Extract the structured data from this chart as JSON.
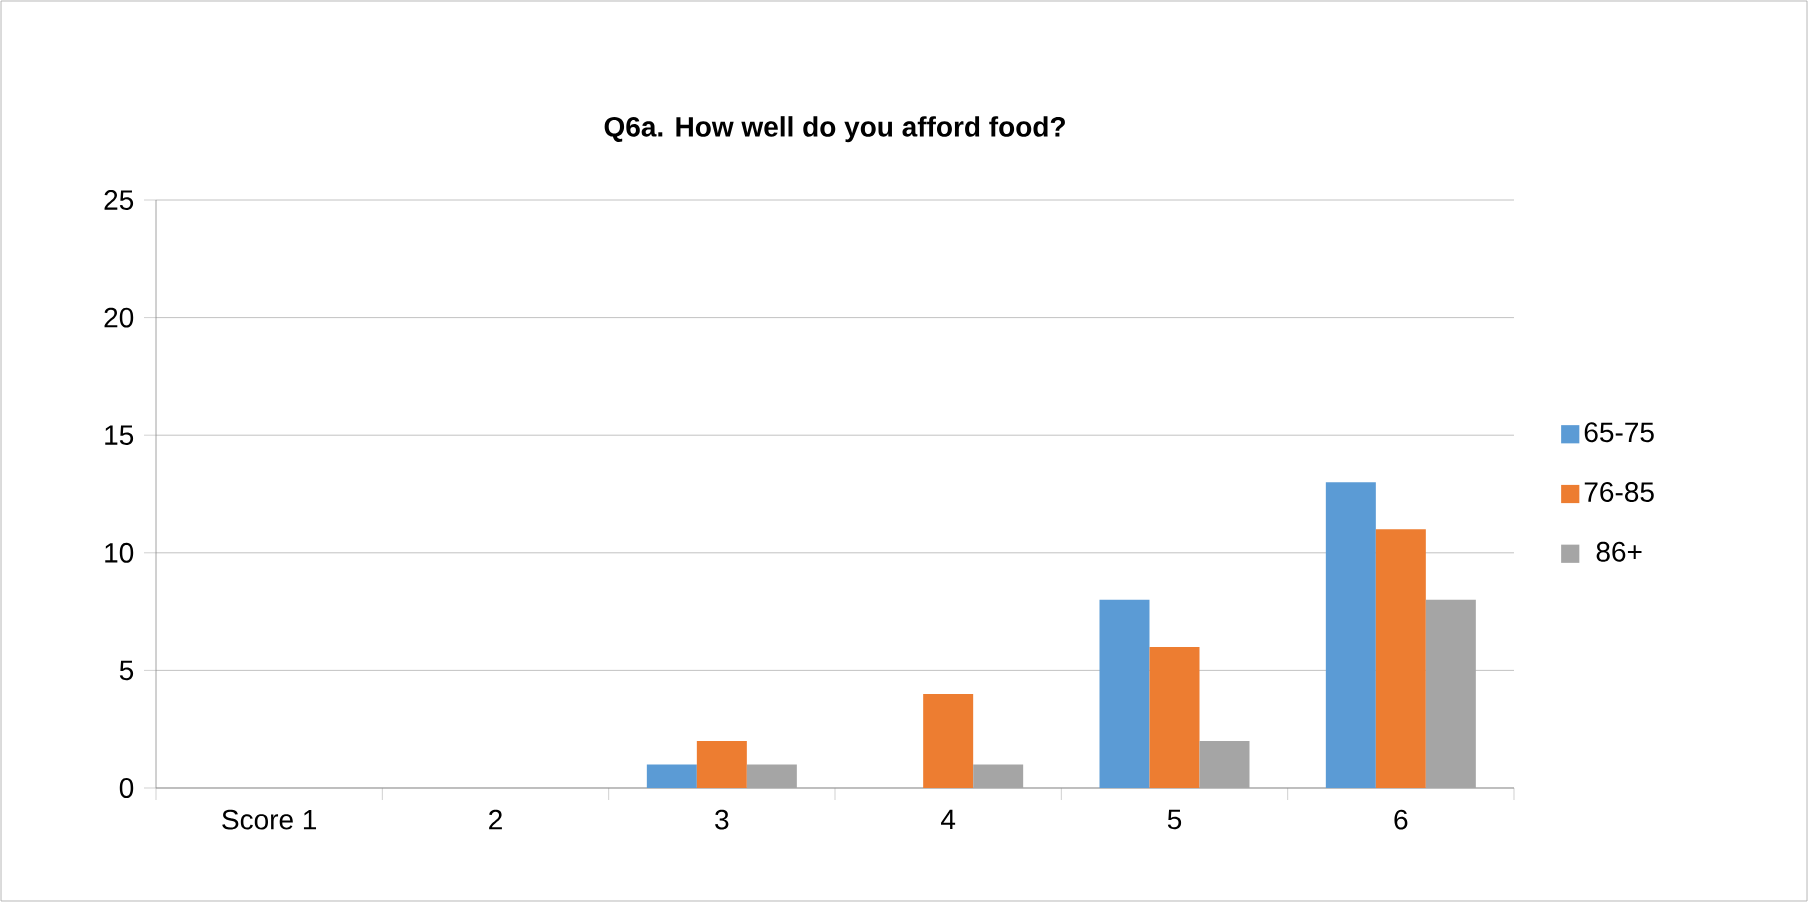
{
  "chart_data": {
    "type": "bar",
    "title": "**Q6a.  How well do you afford food?**",
    "categories": [
      "Score 1",
      "2",
      "3",
      "4",
      "5",
      "6"
    ],
    "series": [
      {
        "name": "65-75",
        "color": "#5b9bd5",
        "values": [
          0,
          0,
          1,
          0,
          8,
          13
        ]
      },
      {
        "name": "76-85",
        "color": "#ed7d31",
        "values": [
          0,
          0,
          2,
          4,
          6,
          11
        ]
      },
      {
        "name": "86+",
        "color": "#a5a5a5",
        "values": [
          0,
          0,
          1,
          1,
          2,
          8
        ]
      }
    ],
    "ylim": [
      0,
      25
    ],
    "yticks": [
      0,
      5,
      10,
      15,
      20,
      25
    ],
    "grid": "y",
    "legend": "right"
  }
}
